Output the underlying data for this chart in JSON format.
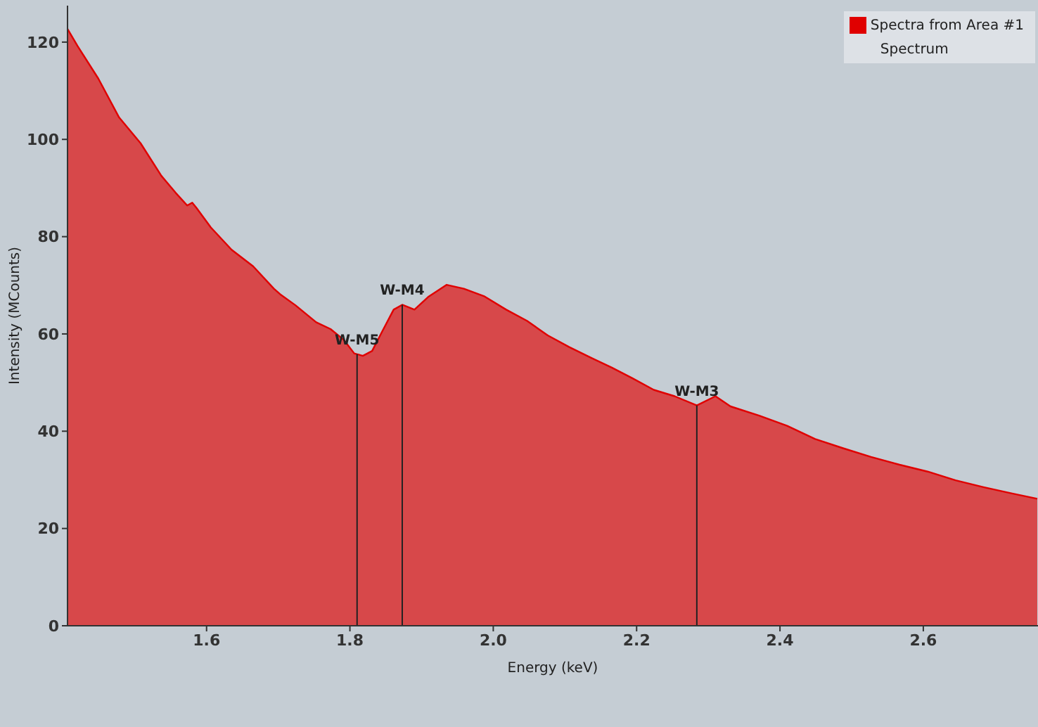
{
  "chart_data": {
    "type": "area",
    "xlabel": "Energy (keV)",
    "ylabel": "Intensity (MCounts)",
    "legend_title": "Spectrum",
    "legend": "top right",
    "grid": false,
    "xlim": [
      1.406,
      2.76
    ],
    "xticks": [
      1.6,
      1.8,
      {
        "value": 2,
        "label": "2.0"
      },
      2.2,
      2.4,
      2.6
    ],
    "ylim": [
      0,
      127.5
    ],
    "yticks": [
      0,
      20,
      40,
      60,
      80,
      100,
      120
    ],
    "series": [
      {
        "name": "Spectra from Area #1",
        "color": "#e00000",
        "x": [
          1.406,
          1.42,
          1.449,
          1.478,
          1.508,
          1.537,
          1.557,
          1.573,
          1.58,
          1.586,
          1.606,
          1.635,
          1.665,
          1.694,
          1.704,
          1.724,
          1.753,
          1.773,
          1.792,
          1.806,
          1.818,
          1.831,
          1.845,
          1.861,
          1.873,
          1.89,
          1.91,
          1.935,
          1.959,
          1.988,
          2.018,
          2.047,
          2.076,
          2.106,
          2.135,
          2.165,
          2.194,
          2.224,
          2.253,
          2.284,
          2.31,
          2.331,
          2.371,
          2.41,
          2.449,
          2.488,
          2.527,
          2.567,
          2.606,
          2.645,
          2.684,
          2.724,
          2.759
        ],
        "values": [
          122.7,
          119.2,
          112.5,
          104.5,
          99.2,
          92.5,
          89,
          86.4,
          87,
          85.9,
          81.9,
          77.3,
          73.9,
          69.3,
          68,
          65.9,
          62.4,
          61,
          58.7,
          56,
          55.5,
          56.5,
          60.5,
          65,
          66,
          65,
          67.7,
          70.1,
          69.3,
          67.7,
          65,
          62.7,
          59.7,
          57.3,
          55.2,
          53.1,
          50.9,
          48.5,
          47.2,
          45.3,
          47.2,
          45.1,
          43.2,
          41.1,
          38.4,
          36.5,
          34.7,
          33.1,
          31.7,
          29.9,
          28.5,
          27.2,
          26.1
        ]
      }
    ],
    "ref_lines": [
      {
        "axis": "x",
        "value": 1.81,
        "label": "W-M5"
      },
      {
        "axis": "x",
        "value": 1.873,
        "label": "W-M4"
      },
      {
        "axis": "x",
        "value": 2.284,
        "label": "W-M3"
      }
    ]
  }
}
